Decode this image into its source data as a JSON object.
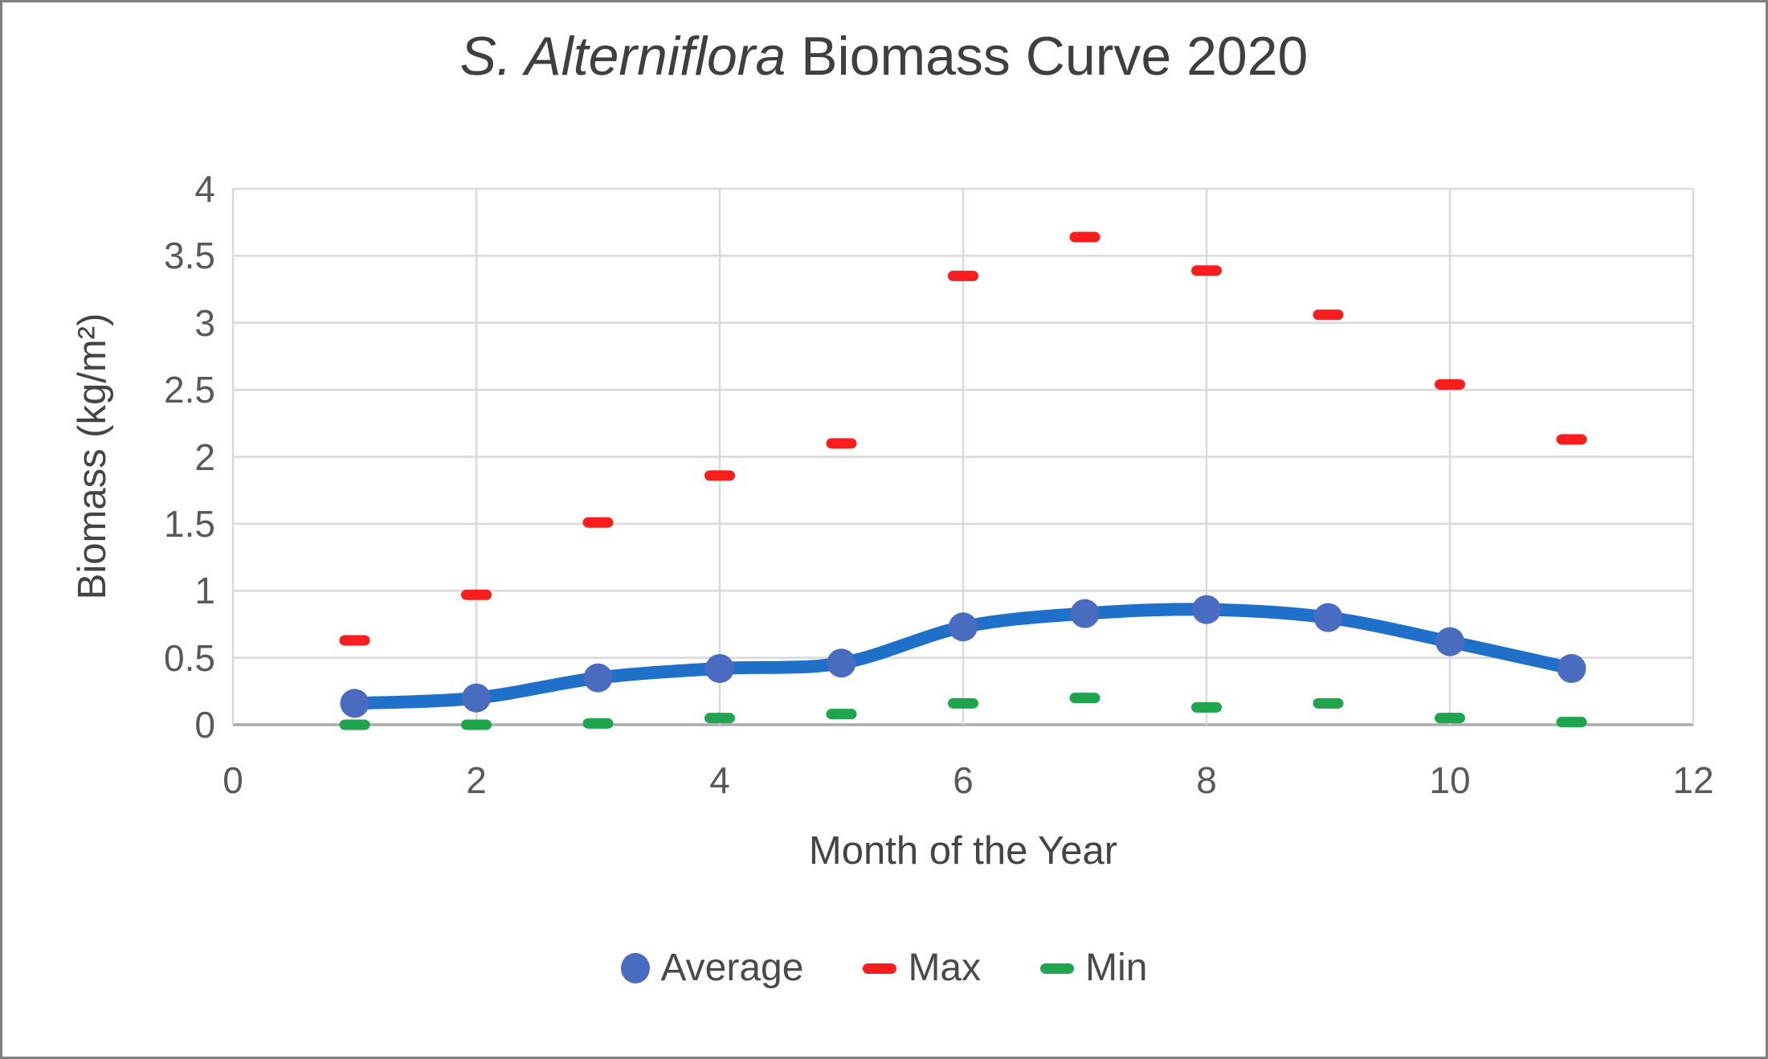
{
  "chart_data": {
    "type": "line",
    "title_italic": "S. Alterniflora",
    "title_rest": " Biomass Curve 2020",
    "xlabel": "Month of the Year",
    "ylabel": "Biomass (kg/m²)",
    "xlim": [
      0,
      12
    ],
    "ylim": [
      0,
      4
    ],
    "xtick_step": 2,
    "ytick_step": 0.5,
    "grid": true,
    "legend_position": "bottom-center",
    "x": [
      1,
      2,
      3,
      4,
      5,
      6,
      7,
      8,
      9,
      10,
      11
    ],
    "series": [
      {
        "name": "Average",
        "style": "smooth_line_with_circle_markers",
        "line_color": "#1E70C8",
        "marker_color": "#4A6CC0",
        "values": [
          0.16,
          0.2,
          0.35,
          0.42,
          0.46,
          0.73,
          0.83,
          0.86,
          0.8,
          0.62,
          0.42
        ]
      },
      {
        "name": "Max",
        "style": "dash_markers",
        "marker_color": "#F91D1D",
        "values": [
          0.63,
          0.97,
          1.51,
          1.86,
          2.1,
          3.35,
          3.64,
          3.39,
          3.06,
          2.54,
          2.13
        ]
      },
      {
        "name": "Min",
        "style": "dash_markers",
        "marker_color": "#1EA54E",
        "values": [
          0.0,
          0.0,
          0.01,
          0.05,
          0.08,
          0.16,
          0.2,
          0.13,
          0.16,
          0.05,
          0.02
        ]
      }
    ]
  },
  "colors": {
    "background": "#FFFFFF",
    "border": "#808080",
    "gridline": "#D9D9D9",
    "axis_line": "#ABABAB",
    "tick_text": "#595959",
    "title_text": "#3F3F3F"
  }
}
